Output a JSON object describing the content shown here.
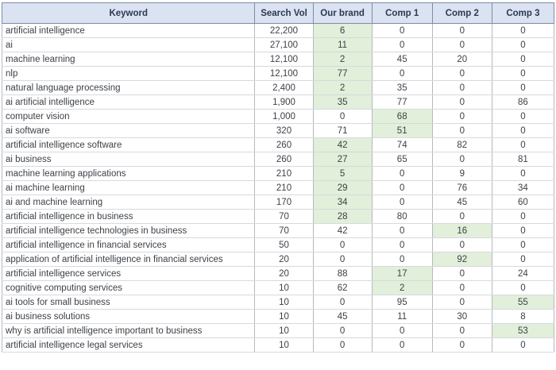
{
  "colors": {
    "header_bg": "#dbe2f1",
    "header_text": "#2b3a55",
    "header_border": "#7d8ca6",
    "body_text": "#3d4147",
    "highlight_green": "#e2efda",
    "outer_border": "#9aa0aa"
  },
  "chart_data": {
    "type": "table",
    "columns": [
      "Keyword",
      "Search Vol",
      "Our brand",
      "Comp 1",
      "Comp 2",
      "Comp 3"
    ],
    "column_keys": [
      "keyword",
      "search_vol",
      "our_brand",
      "comp1",
      "comp2",
      "comp3"
    ],
    "highlight_meaning": "pale green cell = highlighted ranking in that row",
    "rows": [
      {
        "cells": [
          "artificial intelligence",
          "22,200",
          "6",
          "0",
          "0",
          "0"
        ],
        "highlight": "our_brand"
      },
      {
        "cells": [
          "ai",
          "27,100",
          "11",
          "0",
          "0",
          "0"
        ],
        "highlight": "our_brand"
      },
      {
        "cells": [
          "machine learning",
          "12,100",
          "2",
          "45",
          "20",
          "0"
        ],
        "highlight": "our_brand"
      },
      {
        "cells": [
          "nlp",
          "12,100",
          "77",
          "0",
          "0",
          "0"
        ],
        "highlight": "our_brand"
      },
      {
        "cells": [
          "natural language processing",
          "2,400",
          "2",
          "35",
          "0",
          "0"
        ],
        "highlight": "our_brand"
      },
      {
        "cells": [
          "ai artificial intelligence",
          "1,900",
          "35",
          "77",
          "0",
          "86"
        ],
        "highlight": "our_brand"
      },
      {
        "cells": [
          "computer vision",
          "1,000",
          "0",
          "68",
          "0",
          "0"
        ],
        "highlight": "comp1"
      },
      {
        "cells": [
          "ai software",
          "320",
          "71",
          "51",
          "0",
          "0"
        ],
        "highlight": "comp1"
      },
      {
        "cells": [
          "artificial intelligence software",
          "260",
          "42",
          "74",
          "82",
          "0"
        ],
        "highlight": "our_brand"
      },
      {
        "cells": [
          "ai business",
          "260",
          "27",
          "65",
          "0",
          "81"
        ],
        "highlight": "our_brand"
      },
      {
        "cells": [
          "machine learning applications",
          "210",
          "5",
          "0",
          "9",
          "0"
        ],
        "highlight": "our_brand"
      },
      {
        "cells": [
          "ai machine learning",
          "210",
          "29",
          "0",
          "76",
          "34"
        ],
        "highlight": "our_brand"
      },
      {
        "cells": [
          "ai and machine learning",
          "170",
          "34",
          "0",
          "45",
          "60"
        ],
        "highlight": "our_brand"
      },
      {
        "cells": [
          "artificial intelligence in business",
          "70",
          "28",
          "80",
          "0",
          "0"
        ],
        "highlight": "our_brand"
      },
      {
        "cells": [
          "artificial intelligence technologies in business",
          "70",
          "42",
          "0",
          "16",
          "0"
        ],
        "highlight": "comp2"
      },
      {
        "cells": [
          "artificial intelligence in financial services",
          "50",
          "0",
          "0",
          "0",
          "0"
        ],
        "highlight": null
      },
      {
        "cells": [
          "application of artificial intelligence in financial services",
          "20",
          "0",
          "0",
          "92",
          "0"
        ],
        "highlight": "comp2"
      },
      {
        "cells": [
          "artificial intelligence services",
          "20",
          "88",
          "17",
          "0",
          "24"
        ],
        "highlight": "comp1"
      },
      {
        "cells": [
          "cognitive computing services",
          "10",
          "62",
          "2",
          "0",
          "0"
        ],
        "highlight": "comp1"
      },
      {
        "cells": [
          "ai tools for small business",
          "10",
          "0",
          "95",
          "0",
          "55"
        ],
        "highlight": "comp3"
      },
      {
        "cells": [
          "ai business solutions",
          "10",
          "45",
          "11",
          "30",
          "8"
        ],
        "highlight": null
      },
      {
        "cells": [
          "why is artificial intelligence important to business",
          "10",
          "0",
          "0",
          "0",
          "53"
        ],
        "highlight": "comp3"
      },
      {
        "cells": [
          "artificial intelligence legal services",
          "10",
          "0",
          "0",
          "0",
          "0"
        ],
        "highlight": null
      }
    ]
  }
}
